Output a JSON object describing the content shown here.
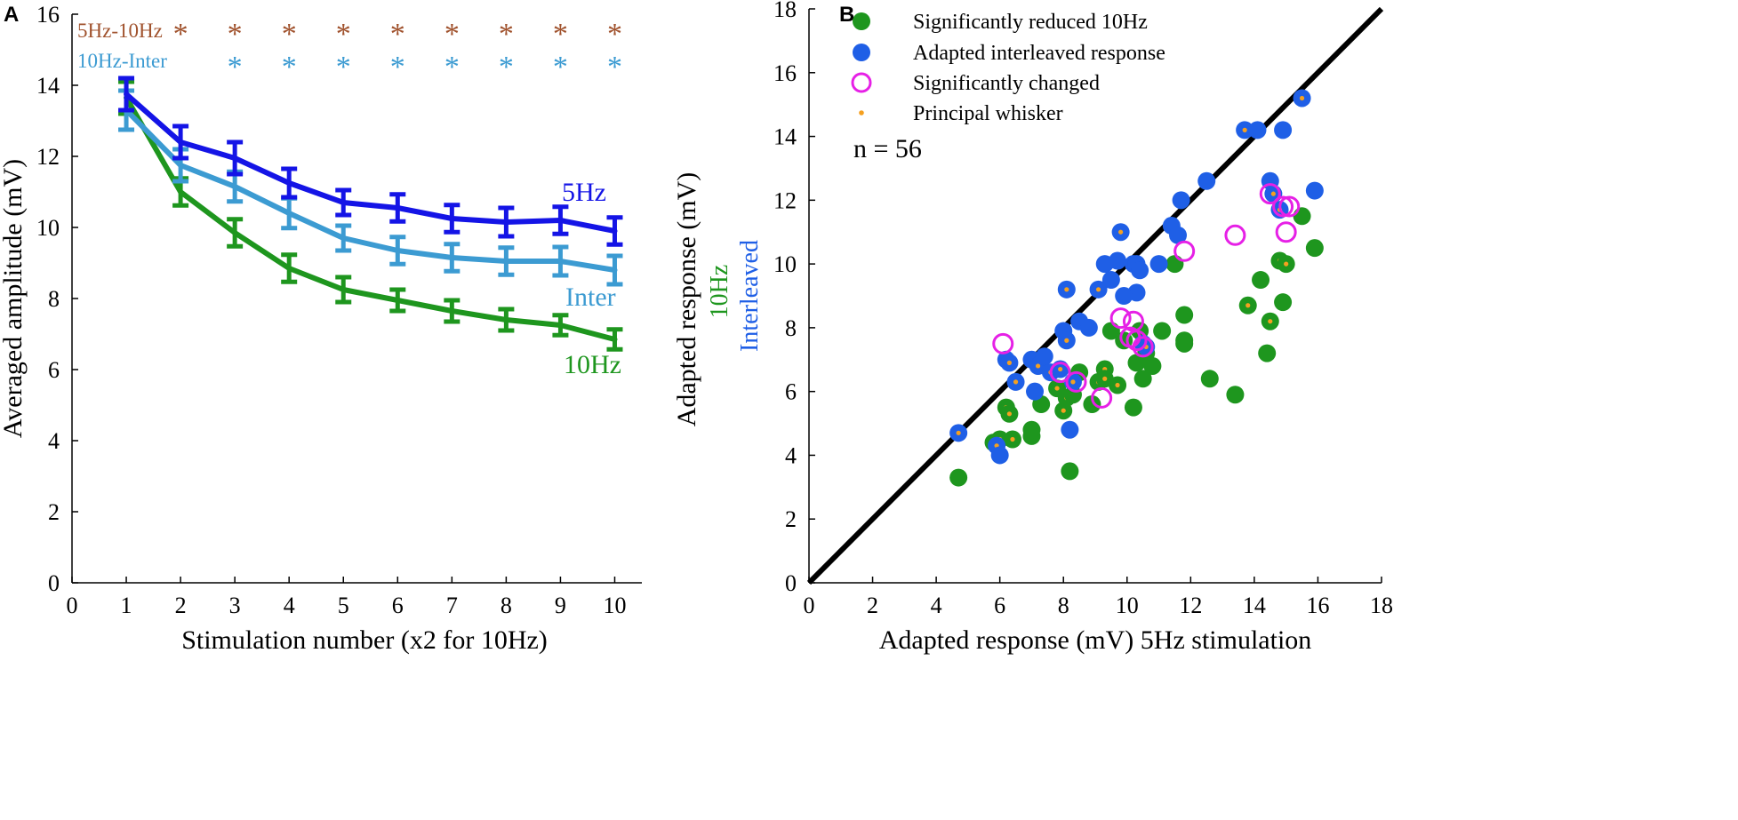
{
  "colors": {
    "c5hz": "#1414e6",
    "inter": "#3c9bd2",
    "c10hz": "#1e961e",
    "sig_brown": "#a0522d",
    "sig_blue": "#3c9bd2",
    "green_dot": "#1e961e",
    "blue_dot": "#1f5fe6",
    "magenta": "#e620e6",
    "orange": "#f5a020",
    "axis": "#000000"
  },
  "chart_data": [
    {
      "panel": "A",
      "type": "line",
      "xlabel": "Stimulation number (x2 for 10Hz)",
      "ylabel": "Averaged amplitude (mV)",
      "xlim": [
        0,
        10.5
      ],
      "ylim": [
        0,
        16
      ],
      "xticks": [
        0,
        1,
        2,
        3,
        4,
        5,
        6,
        7,
        8,
        9,
        10
      ],
      "yticks": [
        0,
        2,
        4,
        6,
        8,
        10,
        12,
        14,
        16
      ],
      "x": [
        1,
        2,
        3,
        4,
        5,
        6,
        7,
        8,
        9,
        10
      ],
      "series": [
        {
          "name": "5Hz",
          "color": "#1414e6",
          "values": [
            13.75,
            12.4,
            11.95,
            11.25,
            10.7,
            10.55,
            10.25,
            10.15,
            10.2,
            9.9
          ],
          "err": [
            0.45,
            0.45,
            0.45,
            0.4,
            0.35,
            0.38,
            0.38,
            0.4,
            0.38,
            0.38
          ]
        },
        {
          "name": "Inter",
          "color": "#3c9bd2",
          "values": [
            13.3,
            11.75,
            11.15,
            10.4,
            9.7,
            9.35,
            9.15,
            9.05,
            9.05,
            8.8
          ],
          "err": [
            0.55,
            0.45,
            0.42,
            0.42,
            0.35,
            0.38,
            0.38,
            0.38,
            0.4,
            0.4
          ]
        },
        {
          "name": "10Hz",
          "color": "#1e961e",
          "values": [
            13.65,
            11.0,
            9.85,
            8.85,
            8.25,
            7.95,
            7.65,
            7.4,
            7.25,
            6.85
          ],
          "err": [
            0.45,
            0.38,
            0.38,
            0.38,
            0.35,
            0.3,
            0.3,
            0.3,
            0.28,
            0.28
          ]
        }
      ],
      "annotations": [
        {
          "text": "5Hz-10Hz",
          "color": "#a0522d",
          "stars_at": [
            2,
            3,
            4,
            5,
            6,
            7,
            8,
            9,
            10
          ]
        },
        {
          "text": "10Hz-Inter",
          "color": "#3c9bd2",
          "stars_at": [
            3,
            4,
            5,
            6,
            7,
            8,
            9,
            10
          ]
        }
      ],
      "series_labels": [
        "5Hz",
        "Inter",
        "10Hz"
      ],
      "star_glyph": "*"
    },
    {
      "panel": "B",
      "type": "scatter",
      "xlabel": "Adapted response (mV) 5Hz stimulation",
      "ylabel": "Adapted response (mV)",
      "ylabel_green": "10Hz",
      "ylabel_blue": "Interleaved",
      "xlim": [
        0,
        18
      ],
      "ylim": [
        0,
        18
      ],
      "xticks": [
        0,
        2,
        4,
        6,
        8,
        10,
        12,
        14,
        16,
        18
      ],
      "yticks": [
        0,
        2,
        4,
        6,
        8,
        10,
        12,
        14,
        16,
        18
      ],
      "annotation": "n = 56",
      "identity_line": true,
      "legend": [
        {
          "label": "Significantly reduced 10Hz",
          "marker": "green"
        },
        {
          "label": "Adapted interleaved response",
          "marker": "blue"
        },
        {
          "label": "Significantly changed",
          "marker": "magenta-ring"
        },
        {
          "label": "Principal whisker",
          "marker": "orange-dot"
        }
      ],
      "series": [
        {
          "name": "10Hz",
          "color": "#1e961e",
          "points": [
            [
              4.7,
              3.3
            ],
            [
              5.8,
              4.4
            ],
            [
              6.0,
              4.5
            ],
            [
              6.4,
              4.5
            ],
            [
              7.0,
              4.6
            ],
            [
              7.0,
              4.8
            ],
            [
              6.2,
              5.5
            ],
            [
              6.3,
              5.3
            ],
            [
              7.3,
              5.6
            ],
            [
              8.2,
              3.5
            ],
            [
              8.0,
              5.4
            ],
            [
              8.1,
              5.8
            ],
            [
              8.3,
              5.9
            ],
            [
              8.5,
              6.6
            ],
            [
              8.9,
              5.6
            ],
            [
              9.1,
              6.3
            ],
            [
              9.3,
              6.7
            ],
            [
              9.7,
              6.2
            ],
            [
              9.5,
              7.9
            ],
            [
              9.9,
              7.6
            ],
            [
              10.2,
              5.5
            ],
            [
              10.3,
              6.9
            ],
            [
              10.5,
              6.4
            ],
            [
              10.6,
              7.2
            ],
            [
              10.8,
              6.8
            ],
            [
              11.1,
              7.9
            ],
            [
              11.5,
              10.0
            ],
            [
              11.8,
              8.4
            ],
            [
              11.8,
              7.6
            ],
            [
              11.8,
              7.5
            ],
            [
              12.6,
              6.4
            ],
            [
              13.4,
              5.9
            ],
            [
              13.8,
              8.7
            ],
            [
              14.2,
              9.5
            ],
            [
              14.5,
              8.2
            ],
            [
              14.4,
              7.2
            ],
            [
              14.8,
              10.1
            ],
            [
              14.9,
              8.8
            ],
            [
              15.0,
              10.0
            ],
            [
              15.5,
              11.5
            ],
            [
              15.9,
              10.5
            ],
            [
              10.4,
              7.9
            ],
            [
              7.8,
              6.1
            ],
            [
              9.3,
              6.4
            ]
          ],
          "orange_center": [
            false,
            true,
            true,
            true,
            true,
            false,
            true,
            true,
            false,
            false,
            true,
            true,
            false,
            false,
            false,
            true,
            true,
            true,
            false,
            false,
            false,
            false,
            false,
            false,
            false,
            false,
            false,
            false,
            true,
            false,
            false,
            false,
            true,
            false,
            true,
            false,
            true,
            false,
            true,
            false,
            false,
            false,
            true,
            true
          ]
        },
        {
          "name": "Interleaved",
          "color": "#1f5fe6",
          "points": [
            [
              4.7,
              4.7
            ],
            [
              5.9,
              4.3
            ],
            [
              6.0,
              4.0
            ],
            [
              6.2,
              7.0
            ],
            [
              6.3,
              6.9
            ],
            [
              6.5,
              6.3
            ],
            [
              7.0,
              7.0
            ],
            [
              7.1,
              6.0
            ],
            [
              7.2,
              6.8
            ],
            [
              7.4,
              7.1
            ],
            [
              7.6,
              6.6
            ],
            [
              7.9,
              6.7
            ],
            [
              8.0,
              7.9
            ],
            [
              8.1,
              7.6
            ],
            [
              8.2,
              4.8
            ],
            [
              8.1,
              9.2
            ],
            [
              8.5,
              8.2
            ],
            [
              8.8,
              8.0
            ],
            [
              9.1,
              9.2
            ],
            [
              9.3,
              10.0
            ],
            [
              9.5,
              9.5
            ],
            [
              9.7,
              10.1
            ],
            [
              9.8,
              11.0
            ],
            [
              10.2,
              10.0
            ],
            [
              10.3,
              9.1
            ],
            [
              10.3,
              10.0
            ],
            [
              10.4,
              9.8
            ],
            [
              10.5,
              7.5
            ],
            [
              10.6,
              7.4
            ],
            [
              11.0,
              10.0
            ],
            [
              11.4,
              11.2
            ],
            [
              11.6,
              10.9
            ],
            [
              11.7,
              12.0
            ],
            [
              12.5,
              12.6
            ],
            [
              13.7,
              14.2
            ],
            [
              14.1,
              14.2
            ],
            [
              14.5,
              12.6
            ],
            [
              14.6,
              12.2
            ],
            [
              14.8,
              11.7
            ],
            [
              14.9,
              14.2
            ],
            [
              15.5,
              15.2
            ],
            [
              15.9,
              12.3
            ],
            [
              8.3,
              6.3
            ],
            [
              9.9,
              9.0
            ]
          ],
          "orange_center": [
            true,
            true,
            false,
            true,
            true,
            true,
            false,
            false,
            true,
            false,
            true,
            true,
            false,
            true,
            false,
            true,
            false,
            false,
            true,
            false,
            false,
            false,
            true,
            false,
            false,
            false,
            false,
            true,
            true,
            false,
            false,
            false,
            false,
            false,
            true,
            false,
            false,
            true,
            true,
            false,
            true,
            false,
            true,
            false
          ]
        },
        {
          "name": "Significantly changed",
          "color": "#e620e6",
          "points": [
            [
              6.1,
              7.5
            ],
            [
              7.9,
              6.6
            ],
            [
              8.4,
              6.3
            ],
            [
              9.2,
              5.8
            ],
            [
              9.8,
              8.3
            ],
            [
              10.1,
              7.7
            ],
            [
              10.3,
              7.6
            ],
            [
              10.2,
              8.2
            ],
            [
              10.5,
              7.4
            ],
            [
              11.8,
              10.4
            ],
            [
              13.4,
              10.9
            ],
            [
              14.5,
              12.2
            ],
            [
              14.9,
              11.8
            ],
            [
              15.1,
              11.8
            ],
            [
              15.0,
              11.0
            ]
          ]
        }
      ]
    }
  ]
}
